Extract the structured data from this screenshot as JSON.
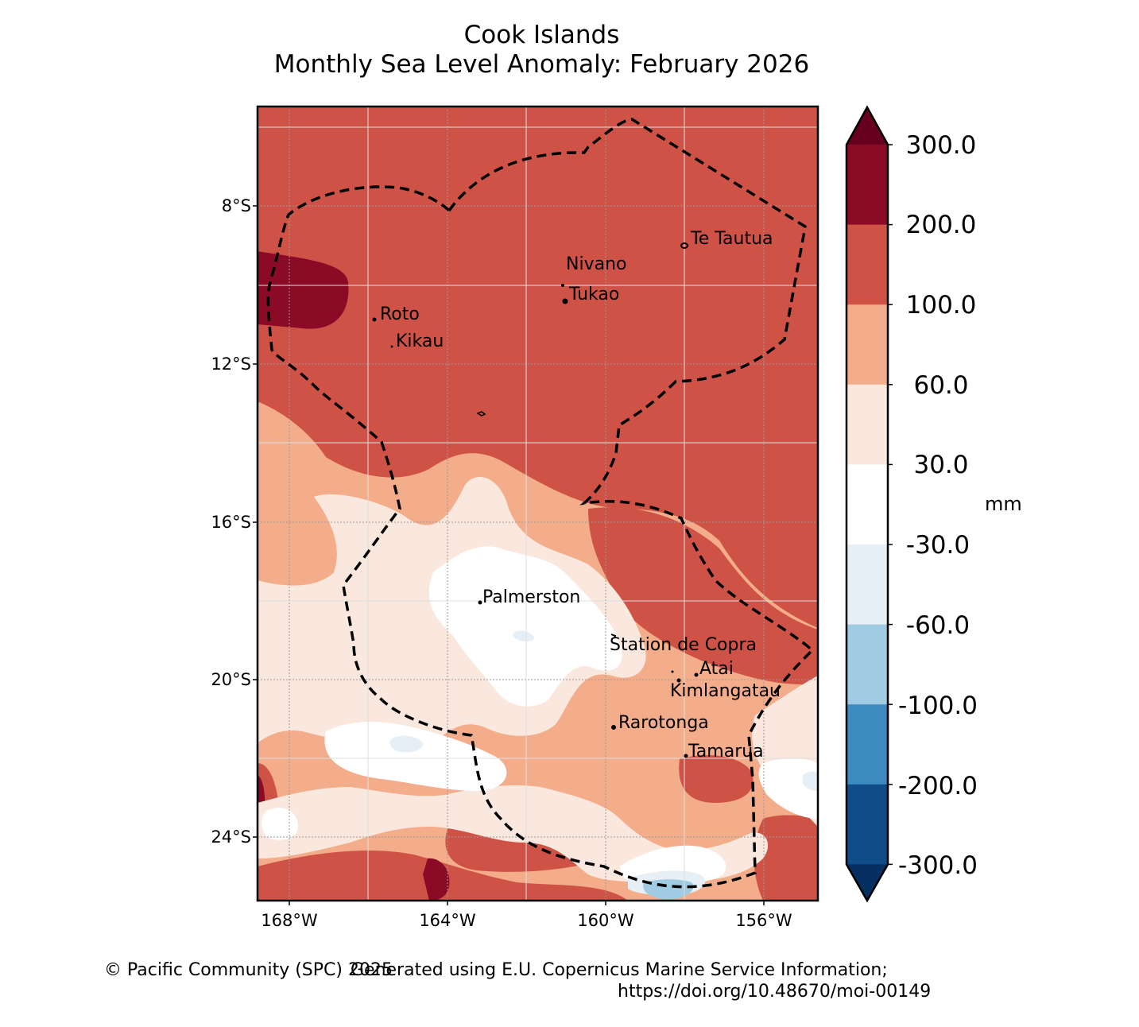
{
  "title": {
    "line1": "Cook Islands",
    "line2": "Monthly Sea Level Anomaly: February 2026"
  },
  "axes": {
    "lat_labels": [
      "8°S",
      "12°S",
      "16°S",
      "20°S",
      "24°S"
    ],
    "lon_labels": [
      "168°W",
      "164°W",
      "160°W",
      "156°W"
    ]
  },
  "colorbar": {
    "ticks": [
      "300.0",
      "200.0",
      "100.0",
      "60.0",
      "30.0",
      "-30.0",
      "-60.0",
      "-100.0",
      "-200.0",
      "-300.0"
    ],
    "unit": "mm",
    "colors": [
      "#67001f",
      "#8b0a26",
      "#cf5246",
      "#f4ad8a",
      "#fae8de",
      "#ffffff",
      "#e6eef6",
      "#a0cbe2",
      "#3d8abf",
      "#0f4c88",
      "#053061"
    ]
  },
  "places": [
    "Te Tautua",
    "Nivano",
    "Tukao",
    "Roto",
    "Kikau",
    "Palmerston",
    "Station de Copra",
    "Atai",
    "Kimlangatau",
    "Rarotonga",
    "Tamarua"
  ],
  "footer": {
    "left": "© Pacific Community (SPC) 2025",
    "right1": "Generated using E.U. Copernicus Marine Service Information;",
    "right2": "https://doi.org/10.48670/moi-00149"
  }
}
